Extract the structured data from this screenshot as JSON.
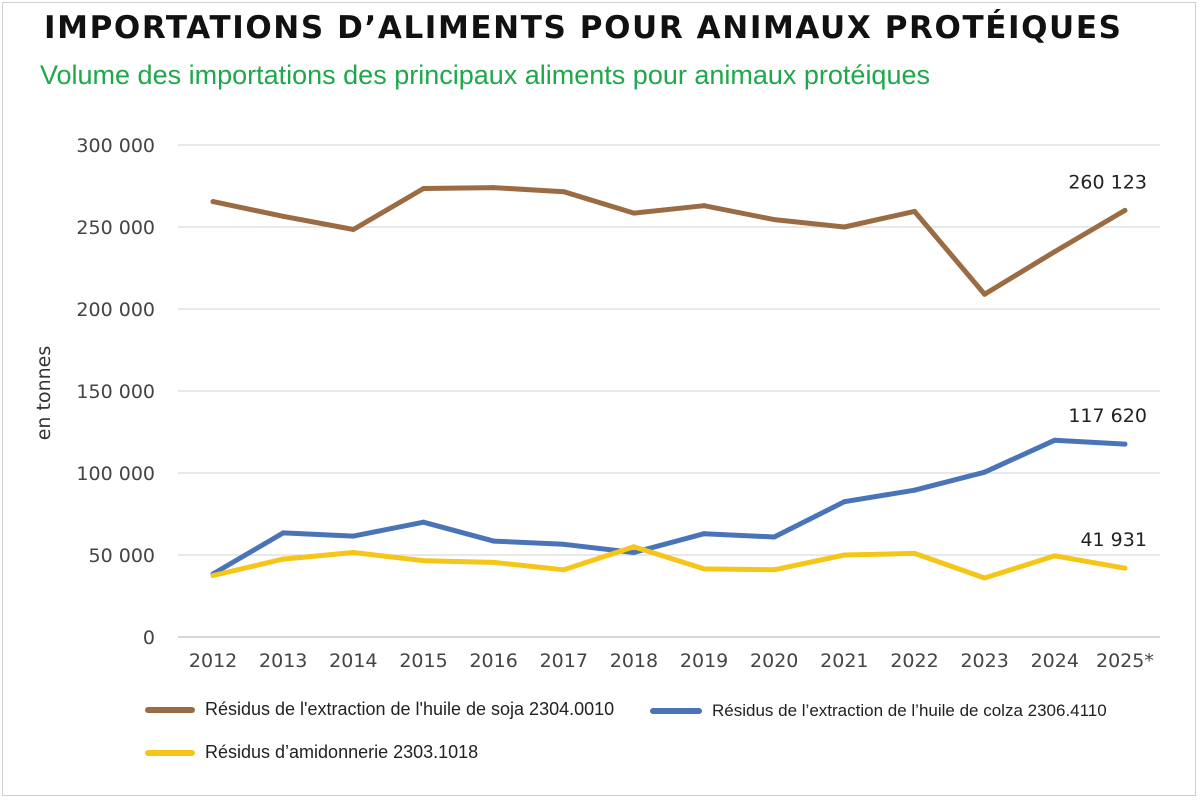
{
  "title": "IMPORTATIONS D’ALIMENTS POUR ANIMAUX PROTÉIQUES",
  "subtitle": "Volume des importations des principaux aliments pour animaux protéiques",
  "chart_data": {
    "type": "line",
    "ylabel": "en tonnes",
    "ylim": [
      0,
      300000
    ],
    "y_ticks": [
      0,
      50000,
      100000,
      150000,
      200000,
      250000,
      300000
    ],
    "y_tick_labels": [
      "0",
      "50 000",
      "100 000",
      "150 000",
      "200 000",
      "250 000",
      "300 000"
    ],
    "grid": true,
    "legend_position": "bottom",
    "x": [
      "2012",
      "2013",
      "2014",
      "2015",
      "2016",
      "2017",
      "2018",
      "2019",
      "2020",
      "2021",
      "2022",
      "2023",
      "2024",
      "2025*"
    ],
    "series": [
      {
        "name": "Résidus de l'extraction de l'huile de soja 2304.0010",
        "color": "#9b6c44",
        "values": [
          265500,
          256500,
          248500,
          273500,
          274000,
          271500,
          258500,
          263000,
          254500,
          250000,
          259500,
          209000,
          235000,
          260123
        ],
        "end_label": "260 123"
      },
      {
        "name": "Résidus de l’extraction de l’huile de colza 2306.4110",
        "color": "#4a74b8",
        "values": [
          38500,
          63500,
          61500,
          70000,
          58500,
          56500,
          51500,
          63000,
          61000,
          82500,
          89500,
          100500,
          120000,
          117620
        ],
        "end_label": "117 620"
      },
      {
        "name": "Résidus d’amidonnerie 2303.1018",
        "color": "#f5c518",
        "values": [
          37500,
          47500,
          51500,
          46500,
          45500,
          41000,
          55000,
          41500,
          41000,
          50000,
          51000,
          36000,
          49500,
          41931
        ],
        "end_label": "41 931"
      }
    ]
  }
}
